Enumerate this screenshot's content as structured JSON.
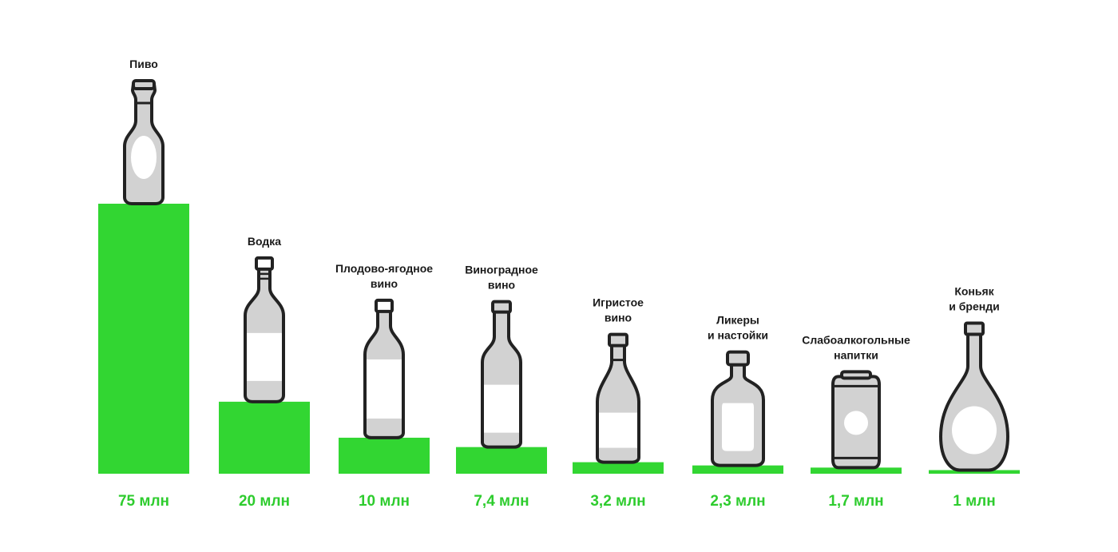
{
  "colors": {
    "bar": "#32d632",
    "value_text": "#2ecc2e",
    "bottle_fill": "#d2d2d2",
    "bottle_label": "#ffffff",
    "bottle_outline": "#222222"
  },
  "chart_data": {
    "type": "bar",
    "title": "",
    "xlabel": "",
    "ylabel": "",
    "unit": "млн",
    "ylim": [
      0,
      75
    ],
    "grid": false,
    "categories": [
      {
        "lines": [
          "Пиво"
        ],
        "value": 75,
        "value_label": "75 млн",
        "icon": "beer-bottle-icon"
      },
      {
        "lines": [
          "Водка"
        ],
        "value": 20,
        "value_label": "20 млн",
        "icon": "vodka-bottle-icon"
      },
      {
        "lines": [
          "Плодово-ягодное",
          "вино"
        ],
        "value": 10,
        "value_label": "10 млн",
        "icon": "fruit-wine-bottle-icon"
      },
      {
        "lines": [
          "Виноградное",
          "вино"
        ],
        "value": 7.4,
        "value_label": "7,4 млн",
        "icon": "grape-wine-bottle-icon"
      },
      {
        "lines": [
          "Игристое",
          "вино"
        ],
        "value": 3.2,
        "value_label": "3,2 млн",
        "icon": "sparkling-wine-bottle-icon"
      },
      {
        "lines": [
          "Ликеры",
          "и настойки"
        ],
        "value": 2.3,
        "value_label": "2,3 млн",
        "icon": "liqueur-bottle-icon"
      },
      {
        "lines": [
          "Слабоалкогольные",
          "напитки"
        ],
        "value": 1.7,
        "value_label": "1,7 млн",
        "icon": "can-icon"
      },
      {
        "lines": [
          "Коньяк",
          "и бренди"
        ],
        "value": 1,
        "value_label": "1 млн",
        "icon": "cognac-decanter-icon"
      }
    ]
  }
}
